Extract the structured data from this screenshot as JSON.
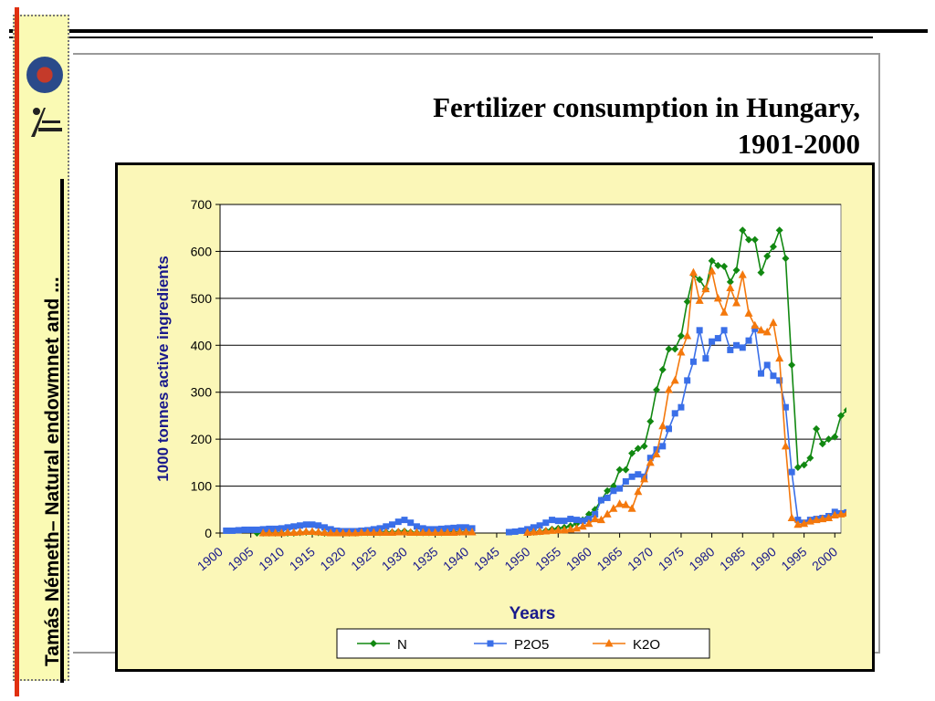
{
  "slide": {
    "title_line1": "Fertilizer consumption in Hungary,",
    "title_line2": "1901-2000",
    "side_text": "Tamás Németh– Natural endowmnet and ..."
  },
  "colors": {
    "N": "#118811",
    "P2O5": "#3a6fe8",
    "K2O": "#f4780c",
    "ylabel": "#1a1a8c",
    "xlabel": "#1a1a8c",
    "ticks": "#1a1a8c"
  },
  "chart_data": {
    "type": "line",
    "title": "",
    "xlabel": "Years",
    "ylabel": "1000 tonnes active ingredients",
    "ylim": [
      0,
      700
    ],
    "xlim": [
      1900,
      2001
    ],
    "yticks": [
      0,
      100,
      200,
      300,
      400,
      500,
      600,
      700
    ],
    "xticks": [
      1900,
      1905,
      1910,
      1915,
      1920,
      1925,
      1930,
      1935,
      1940,
      1945,
      1950,
      1955,
      1960,
      1965,
      1970,
      1975,
      1980,
      1985,
      1990,
      1995,
      2000
    ],
    "grid": "horizontal",
    "legend": "bottom",
    "series": [
      {
        "name": "N",
        "marker": "diamond",
        "points": [
          [
            1906,
            0
          ],
          [
            1907,
            0
          ],
          [
            1908,
            0
          ],
          [
            1909,
            0
          ],
          [
            1910,
            0
          ],
          [
            1911,
            0
          ],
          [
            1912,
            0
          ],
          [
            1913,
            1
          ],
          [
            1914,
            2
          ],
          [
            1915,
            2
          ],
          [
            1916,
            1
          ],
          [
            1917,
            0
          ],
          null,
          [
            1920,
            0
          ],
          [
            1921,
            0
          ],
          [
            1922,
            0
          ],
          [
            1923,
            1
          ],
          [
            1924,
            1
          ],
          [
            1925,
            1
          ],
          [
            1926,
            1
          ],
          [
            1927,
            2
          ],
          [
            1928,
            2
          ],
          [
            1929,
            3
          ],
          [
            1930,
            4
          ],
          [
            1931,
            2
          ],
          [
            1932,
            1
          ],
          [
            1933,
            1
          ],
          [
            1934,
            1
          ],
          [
            1935,
            1
          ],
          [
            1936,
            1
          ],
          [
            1937,
            2
          ],
          [
            1938,
            2
          ],
          [
            1939,
            2
          ],
          [
            1940,
            2
          ],
          null,
          [
            1951,
            2
          ],
          [
            1952,
            3
          ],
          [
            1953,
            5
          ],
          [
            1954,
            8
          ],
          [
            1955,
            10
          ],
          [
            1956,
            12
          ],
          [
            1957,
            15
          ],
          [
            1958,
            20
          ],
          [
            1959,
            28
          ],
          [
            1960,
            40
          ],
          [
            1961,
            50
          ],
          [
            1962,
            70
          ],
          [
            1963,
            90
          ],
          [
            1964,
            100
          ],
          [
            1965,
            135
          ],
          [
            1966,
            135
          ],
          [
            1967,
            170
          ],
          [
            1968,
            180
          ],
          [
            1969,
            185
          ],
          [
            1970,
            238
          ],
          [
            1971,
            305
          ],
          [
            1972,
            348
          ],
          [
            1973,
            392
          ],
          [
            1974,
            392
          ],
          [
            1975,
            420
          ],
          [
            1976,
            493
          ],
          [
            1977,
            550
          ],
          [
            1978,
            540
          ],
          [
            1979,
            520
          ],
          [
            1980,
            580
          ],
          [
            1981,
            570
          ],
          [
            1982,
            568
          ],
          [
            1983,
            535
          ],
          [
            1984,
            560
          ],
          [
            1985,
            645
          ],
          [
            1986,
            625
          ],
          [
            1987,
            625
          ],
          [
            1988,
            555
          ],
          [
            1989,
            590
          ],
          [
            1990,
            610
          ],
          [
            1991,
            645
          ],
          [
            1992,
            585
          ],
          [
            1993,
            358
          ],
          [
            1994,
            140
          ],
          [
            1995,
            145
          ],
          [
            1996,
            160
          ],
          [
            1997,
            222
          ],
          [
            1998,
            190
          ],
          [
            1999,
            200
          ],
          [
            2000,
            205
          ],
          [
            2001,
            250
          ],
          [
            2002,
            262
          ],
          [
            2003,
            258
          ]
        ]
      },
      {
        "name": "P2O5",
        "marker": "square",
        "points": [
          [
            1901,
            5
          ],
          [
            1902,
            5
          ],
          [
            1903,
            6
          ],
          [
            1904,
            7
          ],
          [
            1905,
            7
          ],
          [
            1906,
            7
          ],
          [
            1907,
            8
          ],
          [
            1908,
            9
          ],
          [
            1909,
            9
          ],
          [
            1910,
            10
          ],
          [
            1911,
            12
          ],
          [
            1912,
            14
          ],
          [
            1913,
            16
          ],
          [
            1914,
            18
          ],
          [
            1915,
            18
          ],
          [
            1916,
            16
          ],
          [
            1917,
            12
          ],
          [
            1918,
            8
          ],
          [
            1919,
            5
          ],
          [
            1920,
            4
          ],
          [
            1921,
            4
          ],
          [
            1922,
            4
          ],
          [
            1923,
            5
          ],
          [
            1924,
            6
          ],
          [
            1925,
            8
          ],
          [
            1926,
            10
          ],
          [
            1927,
            14
          ],
          [
            1928,
            18
          ],
          [
            1929,
            24
          ],
          [
            1930,
            28
          ],
          [
            1931,
            22
          ],
          [
            1932,
            14
          ],
          [
            1933,
            10
          ],
          [
            1934,
            8
          ],
          [
            1935,
            8
          ],
          [
            1936,
            9
          ],
          [
            1937,
            10
          ],
          [
            1938,
            11
          ],
          [
            1939,
            12
          ],
          [
            1940,
            12
          ],
          [
            1941,
            10
          ],
          null,
          [
            1947,
            2
          ],
          [
            1948,
            3
          ],
          [
            1949,
            5
          ],
          [
            1950,
            8
          ],
          [
            1951,
            12
          ],
          [
            1952,
            16
          ],
          [
            1953,
            22
          ],
          [
            1954,
            28
          ],
          [
            1955,
            26
          ],
          [
            1956,
            26
          ],
          [
            1957,
            30
          ],
          [
            1958,
            28
          ],
          [
            1959,
            26
          ],
          [
            1960,
            30
          ],
          [
            1961,
            40
          ],
          [
            1962,
            70
          ],
          [
            1963,
            75
          ],
          [
            1964,
            90
          ],
          [
            1965,
            95
          ],
          [
            1966,
            110
          ],
          [
            1967,
            120
          ],
          [
            1968,
            125
          ],
          [
            1969,
            120
          ],
          [
            1970,
            160
          ],
          [
            1971,
            178
          ],
          [
            1972,
            185
          ],
          [
            1973,
            222
          ],
          [
            1974,
            255
          ],
          [
            1975,
            268
          ],
          [
            1976,
            325
          ],
          [
            1977,
            365
          ],
          [
            1978,
            432
          ],
          [
            1979,
            372
          ],
          [
            1980,
            408
          ],
          [
            1981,
            415
          ],
          [
            1982,
            432
          ],
          [
            1983,
            390
          ],
          [
            1984,
            400
          ],
          [
            1985,
            395
          ],
          [
            1986,
            410
          ],
          [
            1987,
            435
          ],
          [
            1988,
            340
          ],
          [
            1989,
            358
          ],
          [
            1990,
            335
          ],
          [
            1991,
            325
          ],
          [
            1992,
            268
          ],
          [
            1993,
            130
          ],
          [
            1994,
            28
          ],
          [
            1995,
            22
          ],
          [
            1996,
            28
          ],
          [
            1997,
            30
          ],
          [
            1998,
            32
          ],
          [
            1999,
            36
          ],
          [
            2000,
            45
          ],
          [
            2001,
            42
          ],
          [
            2002,
            44
          ],
          [
            2003,
            48
          ]
        ]
      },
      {
        "name": "K2O",
        "marker": "triangle",
        "points": [
          [
            1907,
            0
          ],
          [
            1908,
            0
          ],
          [
            1909,
            0
          ],
          [
            1910,
            0
          ],
          [
            1911,
            1
          ],
          [
            1912,
            1
          ],
          [
            1913,
            2
          ],
          [
            1914,
            3
          ],
          [
            1915,
            3
          ],
          [
            1916,
            2
          ],
          [
            1917,
            1
          ],
          [
            1918,
            0
          ],
          [
            1919,
            0
          ],
          [
            1920,
            0
          ],
          [
            1921,
            0
          ],
          [
            1922,
            0
          ],
          [
            1923,
            1
          ],
          [
            1924,
            1
          ],
          [
            1925,
            1
          ],
          [
            1926,
            1
          ],
          [
            1927,
            1
          ],
          [
            1928,
            1
          ],
          [
            1929,
            2
          ],
          [
            1930,
            2
          ],
          [
            1931,
            1
          ],
          [
            1932,
            1
          ],
          [
            1933,
            1
          ],
          [
            1934,
            1
          ],
          [
            1935,
            1
          ],
          [
            1936,
            1
          ],
          [
            1937,
            1
          ],
          [
            1938,
            1
          ],
          [
            1939,
            2
          ],
          [
            1940,
            2
          ],
          [
            1941,
            2
          ],
          null,
          [
            1950,
            1
          ],
          [
            1951,
            2
          ],
          [
            1952,
            3
          ],
          [
            1953,
            4
          ],
          [
            1954,
            5
          ],
          [
            1955,
            6
          ],
          [
            1956,
            6
          ],
          [
            1957,
            8
          ],
          [
            1958,
            10
          ],
          [
            1959,
            14
          ],
          [
            1960,
            20
          ],
          [
            1961,
            30
          ],
          [
            1962,
            28
          ],
          [
            1963,
            40
          ],
          [
            1964,
            52
          ],
          [
            1965,
            62
          ],
          [
            1966,
            60
          ],
          [
            1967,
            52
          ],
          [
            1968,
            88
          ],
          [
            1969,
            115
          ],
          [
            1970,
            150
          ],
          [
            1971,
            168
          ],
          [
            1972,
            228
          ],
          [
            1973,
            305
          ],
          [
            1974,
            325
          ],
          [
            1975,
            385
          ],
          [
            1976,
            420
          ],
          [
            1977,
            555
          ],
          [
            1978,
            495
          ],
          [
            1979,
            520
          ],
          [
            1980,
            558
          ],
          [
            1981,
            500
          ],
          [
            1982,
            470
          ],
          [
            1983,
            522
          ],
          [
            1984,
            490
          ],
          [
            1985,
            550
          ],
          [
            1986,
            468
          ],
          [
            1987,
            442
          ],
          [
            1988,
            432
          ],
          [
            1989,
            428
          ],
          [
            1990,
            448
          ],
          [
            1991,
            372
          ],
          [
            1992,
            185
          ],
          [
            1993,
            32
          ],
          [
            1994,
            18
          ],
          [
            1995,
            20
          ],
          [
            1996,
            25
          ],
          [
            1997,
            28
          ],
          [
            1998,
            30
          ],
          [
            1999,
            32
          ],
          [
            2000,
            38
          ],
          [
            2001,
            40
          ],
          [
            2002,
            42
          ],
          [
            2003,
            50
          ]
        ]
      }
    ]
  }
}
